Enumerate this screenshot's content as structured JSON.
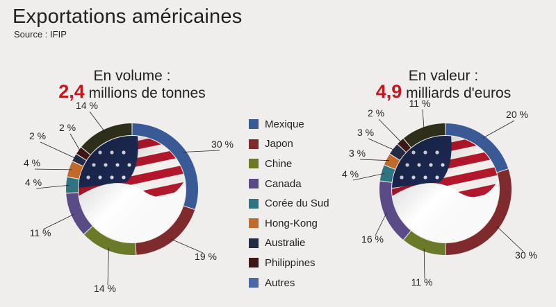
{
  "title": "Exportations américaines",
  "source": "Source : IFIP",
  "colors": {
    "Mexique": "#3a5a95",
    "Japon": "#7f2a2c",
    "Chine": "#6b7a28",
    "Canada": "#5a4b86",
    "Corée du Sud": "#2f7480",
    "Hong-Kong": "#c06a2c",
    "Australie": "#252a45",
    "Philippines": "#3d1716",
    "Autres": "#2e2f1a"
  },
  "legend": [
    "Mexique",
    "Japon",
    "Chine",
    "Canada",
    "Corée du Sud",
    "Hong-Kong",
    "Australie",
    "Philippines",
    "Autres"
  ],
  "legend_colors": [
    "#3a5a95",
    "#7f2a2c",
    "#6b7a28",
    "#5a4b86",
    "#2f7480",
    "#c06a2c",
    "#252a45",
    "#3d1716",
    "#4a67a6"
  ],
  "chart_data": [
    {
      "type": "pie",
      "title_line1": "En volume :",
      "title_big": "2,4",
      "title_rest": "millions de tonnes",
      "categories": [
        "Mexique",
        "Japon",
        "Chine",
        "Canada",
        "Corée du Sud",
        "Hong-Kong",
        "Australie",
        "Philippines",
        "Autres"
      ],
      "values": [
        30,
        19,
        14,
        11,
        4,
        4,
        2,
        2,
        14
      ],
      "labels": [
        "30 %",
        "19 %",
        "14 %",
        "11 %",
        "4 %",
        "4 %",
        "2 %",
        "2 %",
        "14 %"
      ]
    },
    {
      "type": "pie",
      "title_line1": "En valeur :",
      "title_big": "4,9",
      "title_rest": "milliards d'euros",
      "categories": [
        "Mexique",
        "Japon",
        "Chine",
        "Canada",
        "Corée du Sud",
        "Hong-Kong",
        "Australie",
        "Philippines",
        "Autres"
      ],
      "values": [
        20,
        30,
        11,
        16,
        4,
        3,
        3,
        2,
        11
      ],
      "labels": [
        "20 %",
        "30 %",
        "11 %",
        "16 %",
        "4 %",
        "3 %",
        "3 %",
        "2 %",
        "11 %"
      ]
    }
  ]
}
